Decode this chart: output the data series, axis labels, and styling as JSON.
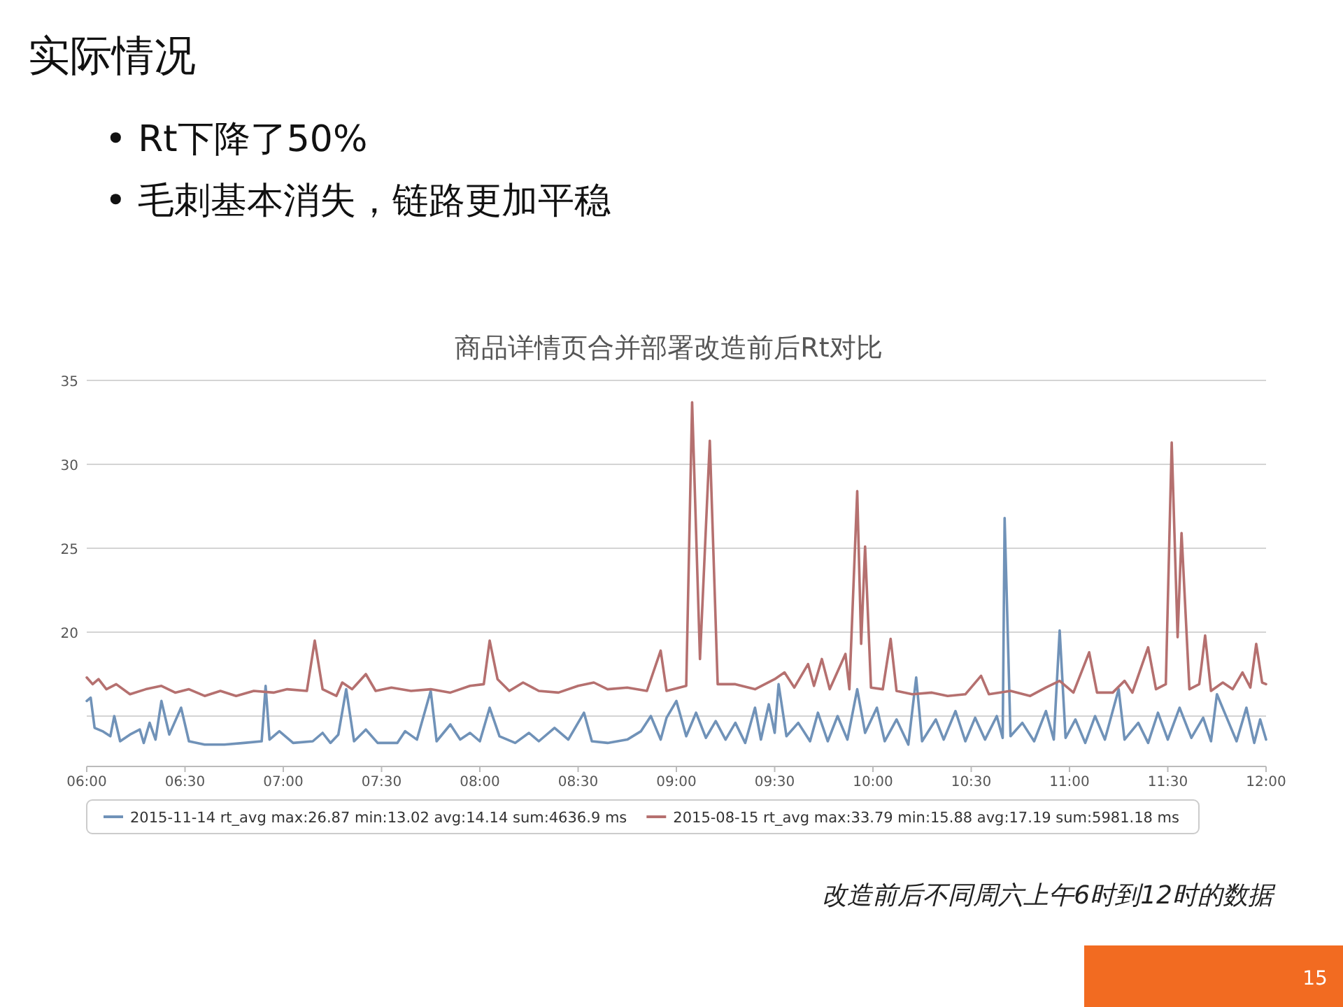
{
  "chart_data": {
    "type": "line",
    "title": "实际情况",
    "subtitle": "商品详情页合并部署改造前后Rt对比",
    "annotations": [
      "• Rt下降了50%",
      "• 毛刺基本消失，链路更加平稳",
      "改造前后不同周六上午6时到12时的数据",
      "15"
    ],
    "xlim": [
      6,
      12
    ],
    "xticks": [
      {
        "value": 6,
        "label": "06:00"
      },
      {
        "value": 6.5,
        "label": "06:30"
      },
      {
        "value": 7,
        "label": "07:00"
      },
      {
        "value": 7.5,
        "label": "07:30"
      },
      {
        "value": 8,
        "label": "08:00"
      },
      {
        "value": 8.5,
        "label": "08:30"
      },
      {
        "value": 9,
        "label": "09:00"
      },
      {
        "value": 9.5,
        "label": "09:30"
      },
      {
        "value": 10,
        "label": "10:00"
      },
      {
        "value": 10.5,
        "label": "10:30"
      },
      {
        "value": 11,
        "label": "11:00"
      },
      {
        "value": 11.5,
        "label": "11:30"
      },
      {
        "value": 12,
        "label": "12:00"
      }
    ],
    "ylim": [
      12,
      35
    ],
    "yticks": [
      {
        "value": 15,
        "label": null
      },
      20,
      25,
      30,
      35
    ],
    "grid": "y",
    "legend": "bottom",
    "marker": "none",
    "line_style": "solid",
    "series": [
      {
        "name": "2015-11-14 rt_avg max:26.87 min:13.02 avg:14.14 sum:4636.9 ms",
        "color": "#7092b8",
        "x": [
          6.0,
          6.02,
          6.04,
          6.08,
          6.12,
          6.14,
          6.17,
          6.22,
          6.27,
          6.29,
          6.32,
          6.35,
          6.38,
          6.42,
          6.48,
          6.52,
          6.6,
          6.7,
          6.8,
          6.89,
          6.91,
          6.93,
          6.98,
          7.05,
          7.15,
          7.2,
          7.24,
          7.28,
          7.32,
          7.36,
          7.42,
          7.48,
          7.58,
          7.62,
          7.68,
          7.75,
          7.78,
          7.85,
          7.9,
          7.95,
          8.0,
          8.05,
          8.1,
          8.18,
          8.25,
          8.3,
          8.38,
          8.45,
          8.53,
          8.57,
          8.65,
          8.75,
          8.82,
          8.87,
          8.92,
          8.95,
          9.0,
          9.05,
          9.1,
          9.15,
          9.2,
          9.25,
          9.3,
          9.35,
          9.4,
          9.43,
          9.47,
          9.5,
          9.52,
          9.56,
          9.62,
          9.68,
          9.72,
          9.77,
          9.82,
          9.87,
          9.92,
          9.96,
          10.02,
          10.06,
          10.12,
          10.18,
          10.22,
          10.25,
          10.32,
          10.36,
          10.42,
          10.47,
          10.52,
          10.57,
          10.63,
          10.66,
          10.67,
          10.7,
          10.76,
          10.82,
          10.88,
          10.92,
          10.95,
          10.98,
          11.03,
          11.08,
          11.13,
          11.18,
          11.25,
          11.28,
          11.35,
          11.4,
          11.45,
          11.5,
          11.56,
          11.62,
          11.68,
          11.72,
          11.75,
          11.8,
          11.85,
          11.9,
          11.94,
          11.97,
          12.0
        ],
        "values": [
          15.9,
          16.1,
          14.3,
          14.1,
          13.8,
          15.0,
          13.5,
          13.9,
          14.2,
          13.4,
          14.6,
          13.6,
          15.9,
          13.9,
          15.5,
          13.5,
          13.3,
          13.3,
          13.4,
          13.5,
          16.8,
          13.6,
          14.1,
          13.4,
          13.5,
          14.0,
          13.4,
          13.9,
          16.6,
          13.5,
          14.2,
          13.4,
          13.4,
          14.1,
          13.6,
          16.5,
          13.5,
          14.5,
          13.6,
          14.0,
          13.5,
          15.5,
          13.8,
          13.4,
          14.0,
          13.5,
          14.3,
          13.6,
          15.2,
          13.5,
          13.4,
          13.6,
          14.1,
          15.0,
          13.6,
          14.9,
          15.9,
          13.8,
          15.2,
          13.7,
          14.7,
          13.6,
          14.6,
          13.4,
          15.5,
          13.6,
          15.7,
          14.0,
          16.9,
          13.8,
          14.6,
          13.5,
          15.2,
          13.5,
          15.0,
          13.6,
          16.6,
          14.0,
          15.5,
          13.5,
          14.8,
          13.3,
          17.3,
          13.5,
          14.8,
          13.6,
          15.3,
          13.5,
          14.9,
          13.6,
          15.0,
          13.7,
          26.8,
          13.8,
          14.6,
          13.5,
          15.3,
          13.6,
          20.1,
          13.7,
          14.8,
          13.4,
          15.0,
          13.6,
          16.6,
          13.6,
          14.6,
          13.4,
          15.2,
          13.6,
          15.5,
          13.7,
          14.9,
          13.5,
          16.3,
          14.9,
          13.5,
          15.5,
          13.4,
          14.8,
          13.6
        ]
      },
      {
        "name": "2015-08-15 rt_avg max:33.79 min:15.88 avg:17.19 sum:5981.18 ms",
        "color": "#b5706f",
        "x": [
          6.0,
          6.03,
          6.06,
          6.1,
          6.15,
          6.22,
          6.3,
          6.38,
          6.45,
          6.52,
          6.6,
          6.68,
          6.76,
          6.85,
          6.95,
          7.02,
          7.12,
          7.16,
          7.2,
          7.27,
          7.3,
          7.35,
          7.42,
          7.47,
          7.55,
          7.65,
          7.75,
          7.85,
          7.95,
          8.02,
          8.05,
          8.09,
          8.15,
          8.22,
          8.3,
          8.4,
          8.5,
          8.58,
          8.65,
          8.75,
          8.85,
          8.92,
          8.95,
          9.05,
          9.08,
          9.12,
          9.17,
          9.21,
          9.3,
          9.4,
          9.5,
          9.55,
          9.6,
          9.67,
          9.7,
          9.74,
          9.78,
          9.86,
          9.88,
          9.92,
          9.94,
          9.96,
          9.99,
          10.05,
          10.09,
          10.12,
          10.2,
          10.3,
          10.38,
          10.47,
          10.55,
          10.59,
          10.7,
          10.8,
          10.88,
          10.95,
          11.02,
          11.1,
          11.14,
          11.22,
          11.28,
          11.32,
          11.4,
          11.44,
          11.49,
          11.52,
          11.55,
          11.57,
          11.61,
          11.66,
          11.69,
          11.72,
          11.78,
          11.83,
          11.88,
          11.92,
          11.95,
          11.98,
          12.0
        ],
        "values": [
          17.3,
          16.9,
          17.2,
          16.6,
          16.9,
          16.3,
          16.6,
          16.8,
          16.4,
          16.6,
          16.2,
          16.5,
          16.2,
          16.5,
          16.4,
          16.6,
          16.5,
          19.5,
          16.6,
          16.2,
          17.0,
          16.6,
          17.5,
          16.5,
          16.7,
          16.5,
          16.6,
          16.4,
          16.8,
          16.9,
          19.5,
          17.2,
          16.5,
          17.0,
          16.5,
          16.4,
          16.8,
          17.0,
          16.6,
          16.7,
          16.5,
          18.9,
          16.5,
          16.8,
          33.7,
          18.4,
          31.4,
          16.9,
          16.9,
          16.6,
          17.2,
          17.6,
          16.7,
          18.1,
          16.8,
          18.4,
          16.6,
          18.7,
          16.6,
          28.4,
          19.3,
          25.1,
          16.7,
          16.6,
          19.6,
          16.5,
          16.3,
          16.4,
          16.2,
          16.3,
          17.4,
          16.3,
          16.5,
          16.2,
          16.7,
          17.1,
          16.4,
          18.8,
          16.4,
          16.4,
          17.1,
          16.4,
          19.1,
          16.6,
          16.9,
          31.3,
          19.7,
          25.9,
          16.6,
          16.9,
          19.8,
          16.5,
          17.0,
          16.6,
          17.6,
          16.7,
          19.3,
          17.0,
          16.9
        ]
      }
    ]
  }
}
